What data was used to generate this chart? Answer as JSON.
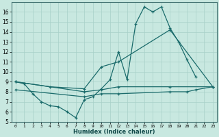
{
  "xlabel": "Humidex (Indice chaleur)",
  "background_color": "#c8e8e0",
  "grid_color": "#a8d0c8",
  "line_color": "#1a6b6b",
  "xlim": [
    -0.5,
    23.5
  ],
  "ylim": [
    5,
    17
  ],
  "xticks": [
    0,
    1,
    2,
    3,
    4,
    5,
    6,
    7,
    8,
    9,
    10,
    11,
    12,
    13,
    14,
    15,
    16,
    17,
    18,
    19,
    20,
    21,
    22,
    23
  ],
  "yticks": [
    5,
    6,
    7,
    8,
    9,
    10,
    11,
    12,
    13,
    14,
    15,
    16
  ],
  "line1_x": [
    0,
    1,
    2,
    3,
    4,
    5,
    6,
    7,
    8,
    9,
    10,
    11,
    12,
    13,
    14,
    15,
    16,
    17,
    18,
    19,
    20,
    21
  ],
  "line1_y": [
    9.0,
    8.8,
    7.8,
    7.0,
    6.6,
    6.5,
    6.0,
    5.4,
    7.2,
    7.5,
    8.3,
    9.2,
    12.0,
    9.2,
    14.8,
    16.5,
    16.0,
    16.5,
    14.4,
    13.0,
    11.2,
    9.5
  ],
  "line2_x": [
    0,
    4,
    8,
    10,
    12,
    18,
    23
  ],
  "line2_y": [
    9.0,
    8.5,
    8.3,
    10.5,
    11.0,
    14.2,
    8.5
  ],
  "line3_x": [
    0,
    8,
    10,
    12,
    18,
    23
  ],
  "line3_y": [
    9.0,
    8.0,
    8.2,
    8.5,
    8.5,
    8.5
  ],
  "line4_x": [
    0,
    8,
    10,
    12,
    18,
    20,
    21,
    23
  ],
  "line4_y": [
    8.2,
    7.5,
    7.8,
    7.8,
    8.0,
    8.0,
    8.2,
    8.5
  ]
}
